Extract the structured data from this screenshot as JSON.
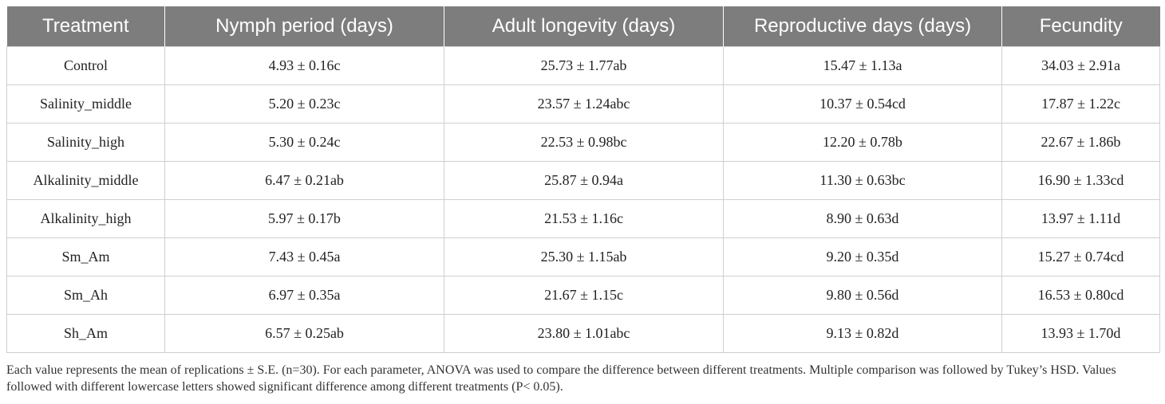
{
  "table": {
    "headers": [
      "Treatment",
      "Nymph period (days)",
      "Adult longevity (days)",
      "Reproductive days (days)",
      "Fecundity"
    ],
    "rows": [
      [
        "Control",
        "4.93 ± 0.16c",
        "25.73 ± 1.77ab",
        "15.47 ± 1.13a",
        "34.03 ± 2.91a"
      ],
      [
        "Salinity_middle",
        "5.20 ± 0.23c",
        "23.57 ± 1.24abc",
        "10.37 ± 0.54cd",
        "17.87 ± 1.22c"
      ],
      [
        "Salinity_high",
        "5.30 ± 0.24c",
        "22.53 ± 0.98bc",
        "12.20 ± 0.78b",
        "22.67 ± 1.86b"
      ],
      [
        "Alkalinity_middle",
        "6.47 ± 0.21ab",
        "25.87 ± 0.94a",
        "11.30 ± 0.63bc",
        "16.90 ± 1.33cd"
      ],
      [
        "Alkalinity_high",
        "5.97 ± 0.17b",
        "21.53 ± 1.16c",
        "8.90 ± 0.63d",
        "13.97 ± 1.11d"
      ],
      [
        "Sm_Am",
        "7.43 ± 0.45a",
        "25.30 ± 1.15ab",
        "9.20 ± 0.35d",
        "15.27 ± 0.74cd"
      ],
      [
        "Sm_Ah",
        "6.97 ± 0.35a",
        "21.67 ± 1.15c",
        "9.80 ± 0.56d",
        "16.53 ± 0.80cd"
      ],
      [
        "Sh_Am",
        "6.57 ± 0.25ab",
        "23.80 ± 1.01abc",
        "9.13 ± 0.82d",
        "13.93 ± 1.70d"
      ]
    ]
  },
  "footnote": "Each value represents the mean of replications ± S.E. (n=30). For each parameter, ANOVA was used to compare the difference between different treatments. Multiple comparison was followed by Tukey’s HSD. Values followed with different lowercase letters showed significant difference among different treatments (P< 0.05)."
}
